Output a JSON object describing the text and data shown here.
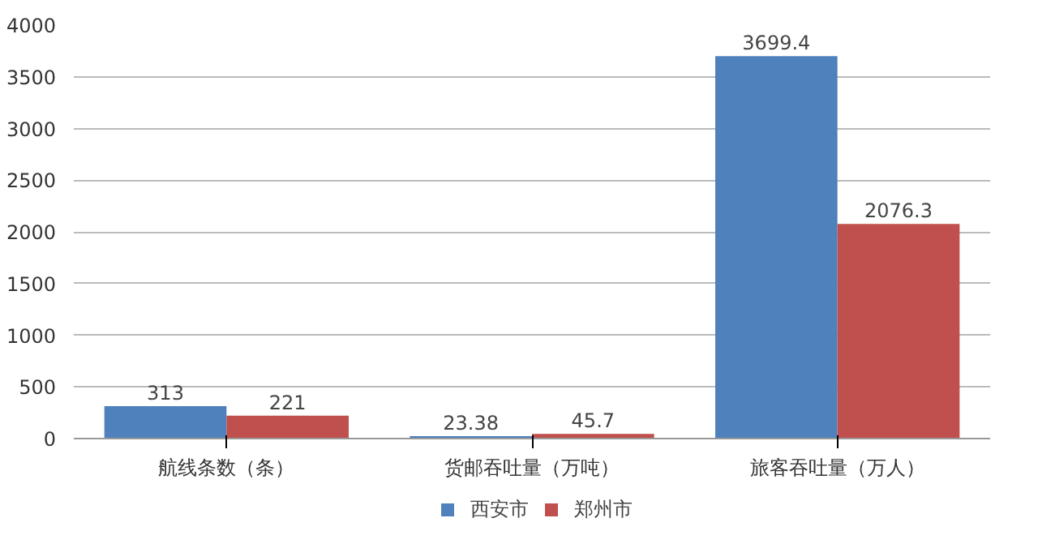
{
  "chart_data": {
    "type": "bar",
    "categories": [
      "航线条数（条）",
      "货邮吞吐量（万吨）",
      "旅客吞吐量（万人）"
    ],
    "series": [
      {
        "name": "西安市",
        "color": "#4f81bd",
        "values": [
          313,
          23.38,
          3699.4
        ]
      },
      {
        "name": "郑州市",
        "color": "#c0504d",
        "values": [
          221,
          45.7,
          2076.3
        ]
      }
    ],
    "ylim": [
      0,
      4000
    ],
    "yticks": [
      0,
      500,
      1000,
      1500,
      2000,
      2500,
      3000,
      3500,
      4000
    ],
    "grid": "y",
    "legend": "bottom",
    "data_labels": true
  }
}
